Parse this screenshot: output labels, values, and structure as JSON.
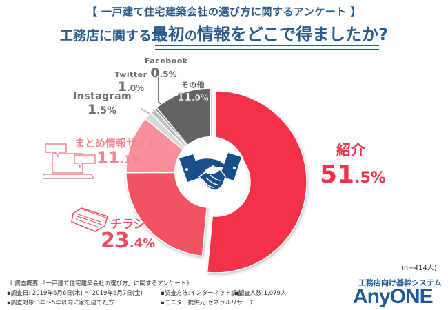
{
  "header": {
    "survey_title": "【 一戸建て住宅建築会社の選び方に関するアンケート 】",
    "question_part1": "工務店に関する",
    "question_part2": "最初",
    "question_part3": "の",
    "question_part4": "情報",
    "question_part5": "をどこで得ましたか?"
  },
  "chart_data": {
    "type": "pie",
    "title": "工務店に関する最初の情報をどこで得ましたか?",
    "subtitle": "【 一戸建て住宅建築会社の選び方に関するアンケート 】",
    "categories": [
      "紹介",
      "チラシ",
      "まとめ情報サイト",
      "Instagram",
      "Twitter",
      "Facebook",
      "その他"
    ],
    "values": [
      51.5,
      23.4,
      11.1,
      1.5,
      1.0,
      0.5,
      11.0
    ],
    "colors": [
      "#f23148",
      "#f25262",
      "#f7909a",
      "#d9d9d9",
      "#bdbdbd",
      "#8a8a8a",
      "#636363"
    ],
    "unit": "%",
    "sample_size": "n=414人",
    "donut": true,
    "center_icon": "handshake-icon",
    "legend_position": "labels-outside"
  },
  "labels": {
    "shoukai": {
      "name": "紹介",
      "int": "51",
      "dec": ".5%"
    },
    "chirashi": {
      "name": "チラシ",
      "int": "23",
      "dec": ".4%"
    },
    "matome": {
      "name": "まとめ情報サイト",
      "int": "11",
      "dec": ".1%"
    },
    "instagram": {
      "name": "Instagram",
      "int": "1",
      "dec": ".5%"
    },
    "twitter": {
      "name": "Twitter",
      "int": "1",
      "dec": ".0%"
    },
    "facebook": {
      "name": "Facebook",
      "int": "0",
      "dec": ".5%"
    },
    "sonota": {
      "name": "その他",
      "int": "11",
      "dec": ".0%"
    }
  },
  "sample": "(n=414人)",
  "footer": {
    "line1": "《 調査概要:「一戸建て住宅建築会社の選び方」に関するアンケート》",
    "line2a": "▪調査日: 2019年6月6日(木) 〜  2019年6月7日(金)",
    "line2b": "▪調査方法:インターネット調査",
    "line2c": "▪調査人数:1,079人",
    "line3a": "▪調査対象:3年〜5年以内に家を建てた方",
    "line3b": "▪モニター提供元:ゼネラルリサーチ"
  },
  "logo": {
    "tagline": "工務店向け基幹システム",
    "name": "AnyONE"
  }
}
